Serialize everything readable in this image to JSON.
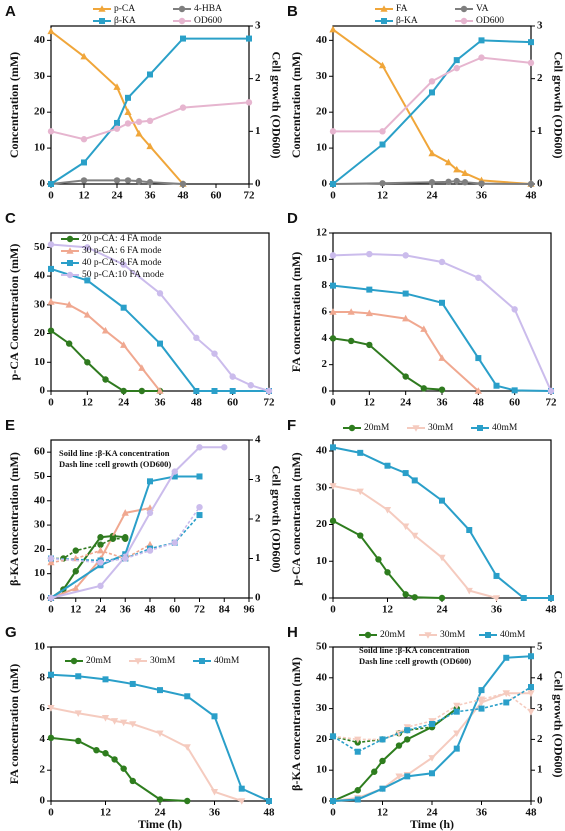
{
  "chart_data": [
    {
      "type": "line",
      "label": "A",
      "ylabel": "Concentration (mM)",
      "y2label": "Cell growth (OD600)",
      "xlim": [
        0,
        72
      ],
      "xticks": [
        0,
        12,
        24,
        36,
        48,
        60,
        72
      ],
      "ylim": [
        0,
        44
      ],
      "yticks": [
        0,
        10,
        20,
        30,
        40
      ],
      "y2lim": [
        0,
        3
      ],
      "y2ticks": [
        0,
        1,
        2,
        3
      ],
      "series": [
        {
          "name": "p-CA",
          "color": "#f0a63a",
          "marker": "triangle",
          "x": [
            0,
            12,
            24,
            28,
            32,
            36,
            48
          ],
          "values": [
            42.5,
            35.5,
            27,
            20,
            14,
            10.5,
            0
          ]
        },
        {
          "name": "4-HBA",
          "color": "#7f7f7f",
          "marker": "circle",
          "x": [
            0,
            12,
            24,
            28,
            32,
            36,
            48
          ],
          "values": [
            0,
            1,
            1,
            1,
            0.8,
            0.5,
            0
          ]
        },
        {
          "name": "β-KA",
          "color": "#2aa0c8",
          "marker": "square",
          "x": [
            0,
            12,
            24,
            28,
            36,
            48,
            72
          ],
          "values": [
            0,
            6,
            17,
            24,
            30.5,
            40.5,
            40.5
          ]
        },
        {
          "name": "OD600",
          "color": "#e6b5cf",
          "marker": "circle",
          "axis": "y2",
          "x": [
            0,
            12,
            24,
            28,
            32,
            36,
            48,
            72
          ],
          "values": [
            1.0,
            0.85,
            1.05,
            1.15,
            1.18,
            1.2,
            1.45,
            1.55
          ]
        }
      ]
    },
    {
      "type": "line",
      "label": "B",
      "ylabel": "Concentration (mM)",
      "y2label": "Cell growth (OD600)",
      "xlim": [
        0,
        48
      ],
      "xticks": [
        0,
        12,
        24,
        36,
        48
      ],
      "ylim": [
        0,
        44
      ],
      "yticks": [
        0,
        10,
        20,
        30,
        40
      ],
      "y2lim": [
        0,
        3
      ],
      "y2ticks": [
        0,
        1,
        2,
        3
      ],
      "series": [
        {
          "name": "FA",
          "color": "#f0a63a",
          "marker": "triangle",
          "x": [
            0,
            12,
            24,
            28,
            30,
            32,
            36,
            48
          ],
          "values": [
            43,
            33,
            8.5,
            6,
            4,
            3,
            1,
            0
          ]
        },
        {
          "name": "VA",
          "color": "#7f7f7f",
          "marker": "circle",
          "x": [
            0,
            12,
            24,
            28,
            30,
            32,
            36,
            48
          ],
          "values": [
            0,
            0.2,
            0.5,
            0.6,
            0.8,
            0.5,
            0.1,
            0
          ]
        },
        {
          "name": "β-KA",
          "color": "#2aa0c8",
          "marker": "square",
          "x": [
            0,
            12,
            24,
            30,
            36,
            48
          ],
          "values": [
            0,
            11,
            25.5,
            34.5,
            40,
            39.5
          ]
        },
        {
          "name": "OD600",
          "color": "#e6b5cf",
          "marker": "circle",
          "axis": "y2",
          "x": [
            0,
            12,
            24,
            30,
            36,
            48
          ],
          "values": [
            1.0,
            1.0,
            1.95,
            2.2,
            2.4,
            2.3
          ]
        }
      ]
    },
    {
      "type": "line",
      "label": "C",
      "ylabel": "p-CA Concentration (mM)",
      "xlim": [
        0,
        72
      ],
      "xticks": [
        0,
        12,
        24,
        36,
        48,
        60,
        72
      ],
      "ylim": [
        0,
        55
      ],
      "yticks": [
        0,
        10,
        20,
        30,
        40,
        50
      ],
      "series": [
        {
          "name": "20 p-CA: 4 FA  mode",
          "color": "#2f7a1f",
          "marker": "circle",
          "x": [
            0,
            6,
            12,
            18,
            24,
            30,
            36
          ],
          "values": [
            21,
            16.5,
            10,
            4,
            0,
            0,
            0
          ]
        },
        {
          "name": "30 p-CA: 6 FA  mode",
          "color": "#f0a890",
          "marker": "triangle",
          "x": [
            0,
            6,
            12,
            18,
            24,
            30,
            36
          ],
          "values": [
            31,
            30,
            26.5,
            21,
            16,
            8,
            0
          ]
        },
        {
          "name": "40 p-CA: 8 FA  mode",
          "color": "#2a9fc9",
          "marker": "square",
          "x": [
            0,
            12,
            24,
            36,
            48,
            54,
            60,
            72
          ],
          "values": [
            42.5,
            38.5,
            29,
            16.5,
            0,
            0,
            0,
            0
          ]
        },
        {
          "name": "50 p-CA:10 FA  mode",
          "color": "#cbbcec",
          "marker": "circle",
          "x": [
            0,
            12,
            24,
            36,
            48,
            54,
            60,
            66,
            72
          ],
          "values": [
            51,
            50,
            44,
            34,
            18.5,
            13,
            5,
            2,
            0
          ]
        }
      ]
    },
    {
      "type": "line",
      "label": "D",
      "ylabel": "FA concentration (mM)",
      "xlim": [
        0,
        72
      ],
      "xticks": [
        0,
        12,
        24,
        36,
        48,
        60,
        72
      ],
      "ylim": [
        0,
        12
      ],
      "yticks": [
        0,
        2,
        4,
        6,
        8,
        10,
        12
      ],
      "series": [
        {
          "color": "#2f7a1f",
          "marker": "circle",
          "x": [
            0,
            6,
            12,
            24,
            30,
            36
          ],
          "values": [
            4,
            3.8,
            3.5,
            1.1,
            0.2,
            0.1
          ]
        },
        {
          "color": "#f0a890",
          "marker": "triangle",
          "x": [
            0,
            6,
            12,
            24,
            30,
            36,
            48
          ],
          "values": [
            6,
            6,
            5.9,
            5.5,
            4.7,
            2.5,
            0
          ]
        },
        {
          "color": "#2a9fc9",
          "marker": "square",
          "x": [
            0,
            12,
            24,
            36,
            48,
            54,
            60,
            72
          ],
          "values": [
            8,
            7.7,
            7.4,
            6.7,
            2.5,
            0.4,
            0.05,
            0
          ]
        },
        {
          "color": "#cbbcec",
          "marker": "circle",
          "x": [
            0,
            12,
            24,
            36,
            48,
            60,
            72
          ],
          "values": [
            10.3,
            10.4,
            10.3,
            9.8,
            8.6,
            6.2,
            0
          ]
        }
      ]
    },
    {
      "type": "line",
      "label": "E",
      "ylabel": "β-KA concentration (mM)",
      "y2label": "Cell growth (OD600)",
      "annotations": [
        "Soild line :β-KA concentration",
        "Dash line :cell growth (OD600)"
      ],
      "xlim": [
        0,
        96
      ],
      "xticks": [
        0,
        12,
        24,
        36,
        48,
        60,
        72,
        84,
        96
      ],
      "ylim": [
        0,
        65
      ],
      "yticks": [
        0,
        10,
        20,
        30,
        40,
        50,
        60
      ],
      "y2lim": [
        0,
        4
      ],
      "y2ticks": [
        0,
        1,
        2,
        3,
        4
      ],
      "series": [
        {
          "color": "#2f7a1f",
          "marker": "circle",
          "x": [
            0,
            6,
            12,
            24,
            30,
            36
          ],
          "values": [
            0,
            3.5,
            11,
            25,
            25.5,
            25
          ]
        },
        {
          "color": "#f0a890",
          "marker": "triangle",
          "x": [
            0,
            12,
            24,
            36,
            48
          ],
          "values": [
            0,
            4,
            16,
            35,
            37
          ]
        },
        {
          "color": "#2a9fc9",
          "marker": "square",
          "x": [
            0,
            24,
            36,
            48,
            60,
            72
          ],
          "values": [
            0,
            13.5,
            18,
            48,
            50,
            50
          ]
        },
        {
          "color": "#cbbcec",
          "marker": "circle",
          "x": [
            0,
            24,
            36,
            48,
            60,
            72,
            84
          ],
          "values": [
            0,
            5,
            17,
            35,
            52,
            62,
            62
          ]
        },
        {
          "color": "#2f7a1f",
          "marker": "circle",
          "axis": "y2",
          "dash": true,
          "x": [
            0,
            6,
            12,
            24,
            30,
            36
          ],
          "values": [
            1.0,
            1.0,
            1.2,
            1.35,
            1.5,
            1.5
          ]
        },
        {
          "color": "#f0a890",
          "marker": "triangle",
          "axis": "y2",
          "dash": true,
          "x": [
            0,
            12,
            24,
            36,
            48
          ],
          "values": [
            0.9,
            1.0,
            1.2,
            1.0,
            1.35
          ]
        },
        {
          "color": "#2a9fc9",
          "marker": "square",
          "axis": "y2",
          "dash": true,
          "x": [
            0,
            24,
            36,
            48,
            60,
            72
          ],
          "values": [
            1.0,
            0.95,
            1.0,
            1.25,
            1.4,
            2.1
          ]
        },
        {
          "color": "#cbbcec",
          "marker": "circle",
          "axis": "y2",
          "dash": true,
          "x": [
            0,
            24,
            36,
            48,
            60,
            72
          ],
          "values": [
            1.0,
            0.9,
            1.0,
            1.2,
            1.4,
            2.3
          ]
        }
      ]
    },
    {
      "type": "line",
      "label": "F",
      "ylabel": "p-CA concentration (mM)",
      "xlim": [
        0,
        48
      ],
      "xticks": [
        0,
        12,
        24,
        36,
        48
      ],
      "ylim": [
        0,
        43
      ],
      "yticks": [
        0,
        10,
        20,
        30,
        40
      ],
      "series": [
        {
          "name": "20mM",
          "color": "#2e7d1e",
          "marker": "circle",
          "x": [
            0,
            6,
            10,
            12,
            16,
            18,
            24
          ],
          "values": [
            21,
            17,
            10.5,
            7,
            1,
            0.2,
            0
          ]
        },
        {
          "name": "30mM",
          "color": "#f5cbbf",
          "marker": "tridown",
          "x": [
            0,
            6,
            12,
            16,
            18,
            24,
            30,
            36
          ],
          "values": [
            30.5,
            29,
            24,
            19.5,
            17,
            11,
            2,
            0
          ]
        },
        {
          "name": "40mM",
          "color": "#2a9fc9",
          "marker": "square",
          "x": [
            0,
            6,
            12,
            16,
            18,
            24,
            30,
            36,
            42,
            48
          ],
          "values": [
            41,
            39.5,
            36,
            34,
            32,
            26.5,
            18.5,
            6,
            0,
            0
          ]
        }
      ]
    },
    {
      "type": "line",
      "label": "G",
      "ylabel": "FA concentration (mM)",
      "xlabel": "Time (h)",
      "xlim": [
        0,
        48
      ],
      "xticks": [
        0,
        12,
        24,
        36,
        48
      ],
      "ylim": [
        0,
        10
      ],
      "yticks": [
        0,
        2,
        4,
        6,
        8,
        10
      ],
      "series": [
        {
          "name": "20mM",
          "color": "#2e7d1e",
          "marker": "circle",
          "x": [
            0,
            6,
            10,
            12,
            14,
            16,
            18,
            24,
            30
          ],
          "values": [
            4.1,
            3.9,
            3.3,
            3.1,
            2.7,
            2.1,
            1.3,
            0.1,
            0
          ]
        },
        {
          "name": "30mM",
          "color": "#f5cbbf",
          "marker": "tridown",
          "x": [
            0,
            6,
            12,
            14,
            16,
            18,
            24,
            30,
            36,
            42
          ],
          "values": [
            6.05,
            5.7,
            5.4,
            5.2,
            5.1,
            5.0,
            4.4,
            3.5,
            0.6,
            0
          ]
        },
        {
          "name": "40mM",
          "color": "#2a9fc9",
          "marker": "square",
          "x": [
            0,
            6,
            12,
            18,
            24,
            30,
            36,
            42,
            48
          ],
          "values": [
            8.2,
            8.1,
            7.9,
            7.6,
            7.2,
            6.8,
            5.5,
            0.8,
            0
          ]
        }
      ]
    },
    {
      "type": "line",
      "label": "H",
      "ylabel": "β-KA concentration (mM)",
      "y2label": "Cell growth (OD600)",
      "xlabel": "Time (h)",
      "annotations": [
        "Soild line :β-KA concentration",
        "Dash line :cell growth (OD600)"
      ],
      "xlim": [
        0,
        48
      ],
      "xticks": [
        0,
        12,
        24,
        36,
        48
      ],
      "ylim": [
        0,
        50
      ],
      "yticks": [
        0,
        10,
        20,
        30,
        40,
        50
      ],
      "y2lim": [
        0,
        5
      ],
      "y2ticks": [
        0,
        1,
        2,
        3,
        4,
        5
      ],
      "series": [
        {
          "name": "20mM",
          "color": "#2e7d1e",
          "marker": "circle",
          "x": [
            0,
            6,
            10,
            12,
            16,
            18,
            24,
            30
          ],
          "values": [
            0,
            3.5,
            9.5,
            13,
            18,
            20,
            24,
            30
          ]
        },
        {
          "name": "30mM",
          "color": "#f5cbbf",
          "marker": "tridown",
          "x": [
            0,
            6,
            12,
            16,
            18,
            24,
            30,
            36,
            42,
            48
          ],
          "values": [
            0,
            1,
            4,
            8,
            8.5,
            14,
            22,
            32,
            35,
            35
          ]
        },
        {
          "name": "40mM",
          "color": "#2a9fc9",
          "marker": "square",
          "x": [
            0,
            6,
            12,
            18,
            24,
            30,
            36,
            42,
            48
          ],
          "values": [
            0,
            0.5,
            4,
            8,
            9,
            17,
            36,
            46.5,
            47
          ]
        },
        {
          "color": "#2e7d1e",
          "marker": "circle",
          "axis": "y2",
          "dash": true,
          "x": [
            0,
            6,
            12,
            16,
            18,
            24,
            30
          ],
          "values": [
            2.1,
            1.9,
            2.0,
            2.2,
            2.3,
            2.4,
            3.0
          ]
        },
        {
          "color": "#f5cbbf",
          "marker": "tridown",
          "axis": "y2",
          "dash": true,
          "x": [
            0,
            6,
            12,
            16,
            18,
            24,
            30,
            36,
            42,
            48
          ],
          "values": [
            2.1,
            2.0,
            2.0,
            2.2,
            2.4,
            2.6,
            3.1,
            3.3,
            3.5,
            2.9
          ]
        },
        {
          "color": "#2a9fc9",
          "marker": "square",
          "axis": "y2",
          "dash": true,
          "x": [
            0,
            6,
            12,
            18,
            24,
            30,
            36,
            42,
            48
          ],
          "values": [
            2.1,
            1.6,
            2.0,
            2.3,
            2.5,
            2.9,
            3.0,
            3.2,
            3.7
          ]
        }
      ]
    }
  ]
}
